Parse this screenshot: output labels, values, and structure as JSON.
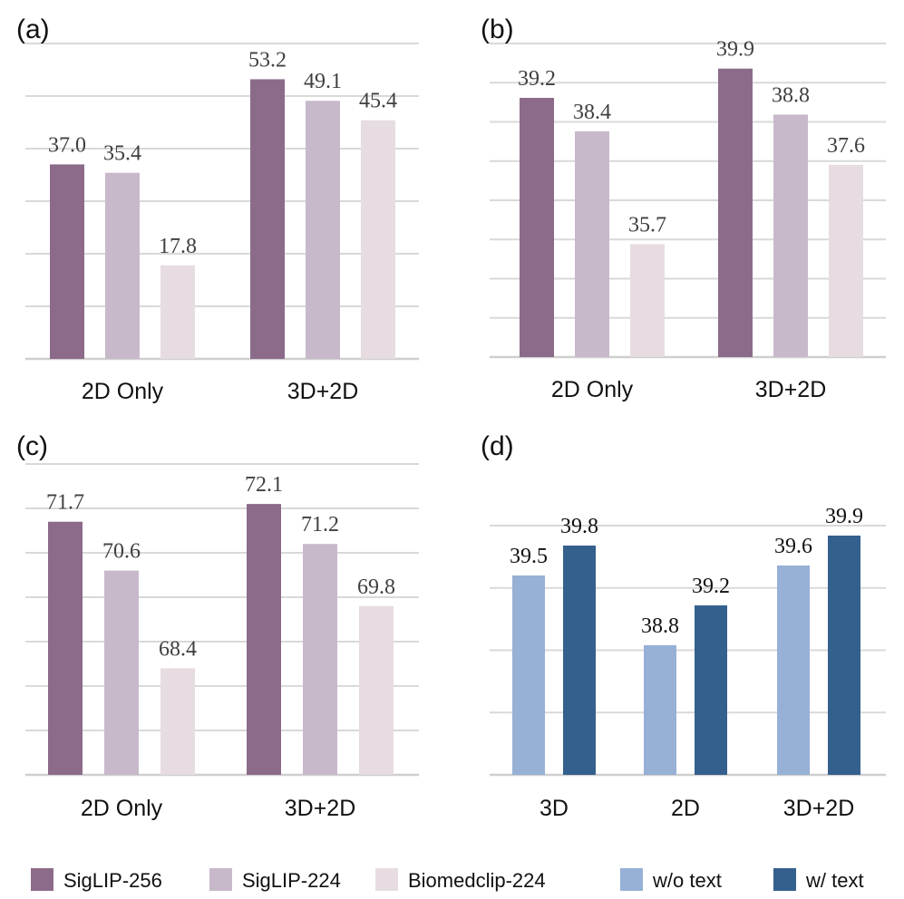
{
  "colors": {
    "siglip256": "#8c6b8a",
    "siglip224": "#c7b9ca",
    "biomedclip224": "#e6dce1",
    "wo_text": "#97b0d6",
    "w_text": "#34608e"
  },
  "legend": [
    {
      "label": "SigLIP-256",
      "color_key": "siglip256"
    },
    {
      "label": "SigLIP-224",
      "color_key": "siglip224"
    },
    {
      "label": "Biomedclip-224",
      "color_key": "biomedclip224"
    },
    {
      "label": "w/o text",
      "color_key": "wo_text"
    },
    {
      "label": "w/ text",
      "color_key": "w_text"
    }
  ],
  "chart_data": [
    {
      "panel": "(a)",
      "type": "bar",
      "categories": [
        "2D Only",
        "3D+2D"
      ],
      "series": [
        {
          "name": "SigLIP-256",
          "color_key": "siglip256",
          "values": [
            37.0,
            53.2
          ]
        },
        {
          "name": "SigLIP-224",
          "color_key": "siglip224",
          "values": [
            35.4,
            49.1
          ]
        },
        {
          "name": "Biomedclip-224",
          "color_key": "biomedclip224",
          "values": [
            17.8,
            45.4
          ]
        }
      ],
      "value_labels": [
        [
          "37.0",
          "53.2"
        ],
        [
          "35.4",
          "49.1"
        ],
        [
          "17.8",
          "45.4"
        ]
      ],
      "ylim": [
        0,
        60
      ],
      "gridlines": 6
    },
    {
      "panel": "(b)",
      "type": "bar",
      "categories": [
        "2D Only",
        "3D+2D"
      ],
      "series": [
        {
          "name": "SigLIP-256",
          "color_key": "siglip256",
          "values": [
            39.2,
            39.9
          ]
        },
        {
          "name": "SigLIP-224",
          "color_key": "siglip224",
          "values": [
            38.4,
            38.8
          ]
        },
        {
          "name": "Biomedclip-224",
          "color_key": "biomedclip224",
          "values": [
            35.7,
            37.6
          ]
        }
      ],
      "value_labels": [
        [
          "39.2",
          "39.9"
        ],
        [
          "38.4",
          "38.8"
        ],
        [
          "35.7",
          "37.6"
        ]
      ],
      "ylim": [
        33,
        40.5
      ],
      "gridlines": 8
    },
    {
      "panel": "(c)",
      "type": "bar",
      "categories": [
        "2D Only",
        "3D+2D"
      ],
      "series": [
        {
          "name": "SigLIP-256",
          "color_key": "siglip256",
          "values": [
            71.7,
            72.1
          ]
        },
        {
          "name": "SigLIP-224",
          "color_key": "siglip224",
          "values": [
            70.6,
            71.2
          ]
        },
        {
          "name": "Biomedclip-224",
          "color_key": "biomedclip224",
          "values": [
            68.4,
            69.8
          ]
        }
      ],
      "value_labels": [
        [
          "71.7",
          "72.1"
        ],
        [
          "70.6",
          "71.2"
        ],
        [
          "68.4",
          "69.8"
        ]
      ],
      "ylim": [
        66,
        73
      ],
      "gridlines": 7
    },
    {
      "panel": "(d)",
      "type": "bar",
      "categories": [
        "3D",
        "2D",
        "3D+2D"
      ],
      "series": [
        {
          "name": "w/o text",
          "color_key": "wo_text",
          "values": [
            39.5,
            38.8,
            39.6
          ]
        },
        {
          "name": "w/ text",
          "color_key": "w_text",
          "values": [
            39.8,
            39.2,
            39.9
          ]
        }
      ],
      "value_labels": [
        [
          "39.5",
          "38.8",
          "39.6"
        ],
        [
          "39.8",
          "39.2",
          "39.9"
        ]
      ],
      "ylim": [
        37.5,
        40.0
      ],
      "gridlines": 4,
      "dark_labels": true
    }
  ]
}
